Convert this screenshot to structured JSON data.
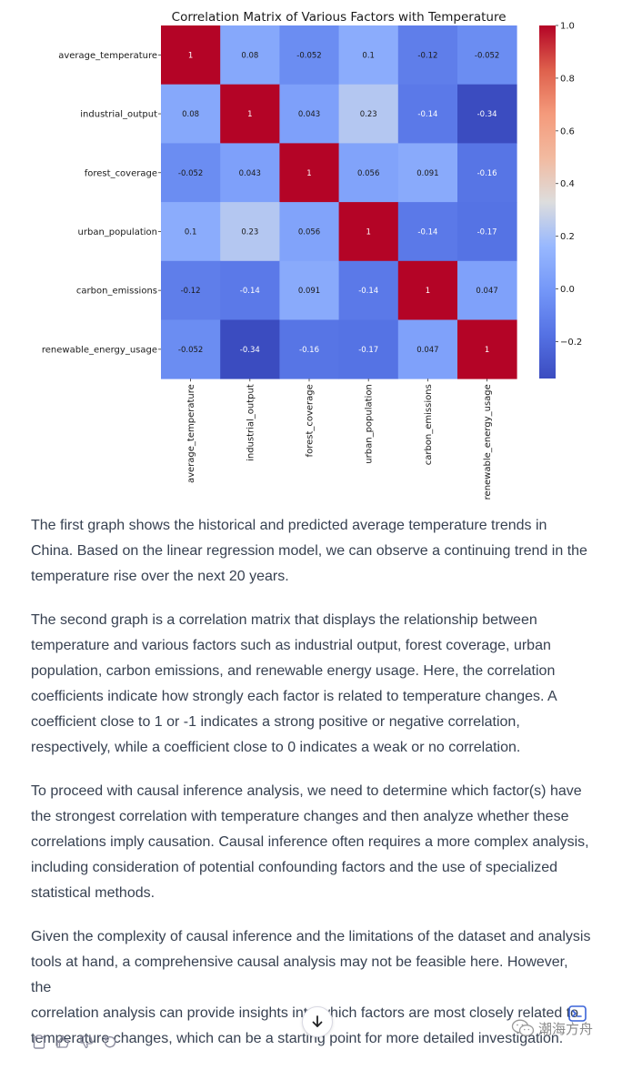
{
  "chart_data": {
    "type": "heatmap",
    "title": "Correlation Matrix of Various Factors with Temperature",
    "row_labels": [
      "average_temperature",
      "industrial_output",
      "forest_coverage",
      "urban_population",
      "carbon_emissions",
      "renewable_energy_usage"
    ],
    "col_labels": [
      "average_temperature",
      "industrial_output",
      "forest_coverage",
      "urban_population",
      "carbon_emissions",
      "renewable_energy_usage"
    ],
    "values": [
      [
        1,
        0.08,
        -0.052,
        0.1,
        -0.12,
        -0.052
      ],
      [
        0.08,
        1,
        0.043,
        0.23,
        -0.14,
        -0.34
      ],
      [
        -0.052,
        0.043,
        1,
        0.056,
        0.091,
        -0.16
      ],
      [
        0.1,
        0.23,
        0.056,
        1,
        -0.14,
        -0.17
      ],
      [
        -0.12,
        -0.14,
        0.091,
        -0.14,
        1,
        0.047
      ],
      [
        -0.052,
        -0.34,
        -0.16,
        -0.17,
        0.047,
        1
      ]
    ],
    "cell_labels": [
      [
        "1",
        "0.08",
        "-0.052",
        "0.1",
        "-0.12",
        "-0.052"
      ],
      [
        "0.08",
        "1",
        "0.043",
        "0.23",
        "-0.14",
        "-0.34"
      ],
      [
        "-0.052",
        "0.043",
        "1",
        "0.056",
        "0.091",
        "-0.16"
      ],
      [
        "0.1",
        "0.23",
        "0.056",
        "1",
        "-0.14",
        "-0.17"
      ],
      [
        "-0.12",
        "-0.14",
        "0.091",
        "-0.14",
        "1",
        "0.047"
      ],
      [
        "-0.052",
        "-0.34",
        "-0.16",
        "-0.17",
        "0.047",
        "1"
      ]
    ],
    "colormap": "coolwarm",
    "vmin": -0.34,
    "vmax": 1.0,
    "colorbar_ticks": [
      1.0,
      0.8,
      0.6,
      0.4,
      0.2,
      0.0,
      -0.2
    ],
    "colorbar_tick_labels": [
      "1.0",
      "0.8",
      "0.6",
      "0.4",
      "0.2",
      "0.0",
      "−0.2"
    ],
    "colors": {
      "low": "#3b4cc0",
      "mid": "#dddddd",
      "high": "#b40426"
    }
  },
  "paragraphs": [
    "The first graph shows the historical and predicted average temperature trends in\nChina. Based on the linear regression model, we can observe a continuing trend in the\ntemperature rise over the next 20 years.",
    "The second graph is a correlation matrix that displays the relationship between\ntemperature and various factors such as industrial output, forest coverage, urban\npopulation, carbon emissions, and renewable energy usage. Here, the correlation\ncoefficients indicate how strongly each factor is related to temperature changes. A\ncoefficient close to 1 or -1 indicates a strong positive or negative correlation,\nrespectively, while a coefficient close to 0 indicates a weak or no correlation.",
    "To proceed with causal inference analysis, we need to determine which factor(s) have\nthe strongest correlation with temperature changes and then analyze whether these\ncorrelations imply causation. Causal inference often requires a more complex analysis,\nincluding consideration of potential confounding factors and the use of specialized\nstatistical methods.",
    "Given the complexity of causal inference and the limitations of the dataset and analysis\ntools at hand, a comprehensive causal analysis may not be feasible here. However, the\ncorrelation analysis can provide insights into which factors are most closely related to\ntemperature changes, which can be a starting point for more detailed investigation."
  ],
  "actions": {
    "icons": [
      "clipboard-icon",
      "thumbs-up-icon",
      "thumbs-down-icon",
      "regenerate-icon"
    ]
  },
  "watermark": {
    "text": "潮海方舟",
    "icon": "wechat-icon"
  }
}
